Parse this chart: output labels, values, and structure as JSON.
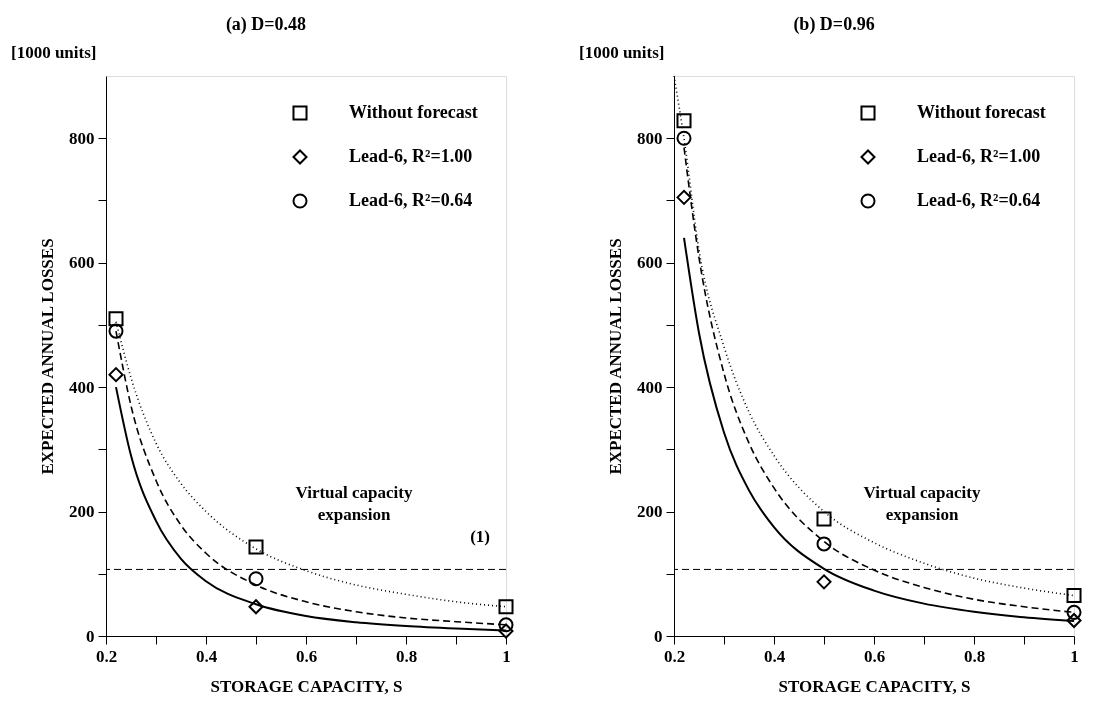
{
  "chart_data": [
    {
      "type": "scatter",
      "title": "(a) D=0.48",
      "xlabel": "STORAGE CAPACITY, S",
      "ylabel": "EXPECTED ANNUAL LOSSES",
      "annotations": [
        "[1000 units]",
        "Virtual capacity expansion",
        "(1)"
      ],
      "xlim": [
        0.2,
        1
      ],
      "ylim": [
        0,
        900
      ],
      "xticks": [
        0.2,
        {
          "value": 0.3,
          "label": null
        },
        0.4,
        {
          "value": 0.5,
          "label": null
        },
        0.6,
        {
          "value": 0.7,
          "label": null
        },
        0.8,
        {
          "value": 0.9,
          "label": null
        },
        1
      ],
      "yticks": [
        0,
        {
          "value": 100,
          "label": null
        },
        200,
        {
          "value": 300,
          "label": null
        },
        400,
        {
          "value": 500,
          "label": null
        },
        600,
        {
          "value": 700,
          "label": null
        },
        800
      ],
      "grid": false,
      "legend": "top right",
      "ref_lines": [
        {
          "axis": "y",
          "value": 107,
          "line_style": "dashed"
        }
      ],
      "series": [
        {
          "name": "Without forecast",
          "marker": "square",
          "color": "#000000",
          "x": [
            0.22,
            0.5,
            1
          ],
          "values": [
            510,
            143,
            47
          ]
        },
        {
          "name": "Lead-6, R²=1.00",
          "marker": "diamond",
          "color": "#000000",
          "x": [
            0.22,
            0.5,
            1
          ],
          "values": [
            420,
            47,
            8
          ]
        },
        {
          "name": "Lead-6, R²=0.64",
          "marker": "circle",
          "color": "#000000",
          "x": [
            0.22,
            0.5,
            1
          ],
          "values": [
            490,
            92,
            18
          ]
        },
        {
          "type": "line",
          "line_style": "dotted",
          "marker": "none",
          "color": "#000000",
          "x": [
            0.22,
            0.25,
            0.3,
            0.35,
            0.4,
            0.5,
            0.6,
            0.7,
            0.8,
            0.9,
            1
          ],
          "values": [
            505,
            415,
            310,
            245,
            200,
            140,
            105,
            82,
            67,
            55,
            47
          ]
        },
        {
          "type": "line",
          "line_style": "dashed",
          "marker": "none",
          "color": "#000000",
          "x": [
            0.22,
            0.25,
            0.3,
            0.35,
            0.4,
            0.5,
            0.6,
            0.7,
            0.8,
            0.9,
            1
          ],
          "values": [
            490,
            370,
            250,
            178,
            133,
            82,
            55,
            39,
            29,
            23,
            18
          ]
        },
        {
          "type": "line",
          "line_style": "solid",
          "marker": "none",
          "color": "#000000",
          "x": [
            0.22,
            0.25,
            0.3,
            0.35,
            0.4,
            0.5,
            0.6,
            0.7,
            0.8,
            0.9,
            1
          ],
          "values": [
            400,
            290,
            185,
            124,
            88,
            51,
            32,
            22,
            16,
            12,
            9
          ]
        }
      ]
    },
    {
      "type": "scatter",
      "title": "(b) D=0.96",
      "xlabel": "STORAGE CAPACITY, S",
      "ylabel": "EXPECTED ANNUAL LOSSES",
      "annotations": [
        "[1000 units]",
        "Virtual capacity expansion"
      ],
      "xlim": [
        0.2,
        1
      ],
      "ylim": [
        0,
        900
      ],
      "xticks": [
        0.2,
        {
          "value": 0.3,
          "label": null
        },
        0.4,
        {
          "value": 0.5,
          "label": null
        },
        0.6,
        {
          "value": 0.7,
          "label": null
        },
        0.8,
        {
          "value": 0.9,
          "label": null
        },
        1
      ],
      "yticks": [
        0,
        {
          "value": 100,
          "label": null
        },
        200,
        {
          "value": 300,
          "label": null
        },
        400,
        {
          "value": 500,
          "label": null
        },
        600,
        {
          "value": 700,
          "label": null
        },
        800
      ],
      "grid": false,
      "legend": "top right",
      "ref_lines": [
        {
          "axis": "y",
          "value": 107,
          "line_style": "dashed"
        }
      ],
      "series": [
        {
          "name": "Without forecast",
          "marker": "square",
          "color": "#000000",
          "x": [
            0.22,
            0.5,
            1
          ],
          "values": [
            828,
            188,
            65
          ]
        },
        {
          "name": "Lead-6, R²=1.00",
          "marker": "diamond",
          "color": "#000000",
          "x": [
            0.22,
            0.5,
            1
          ],
          "values": [
            705,
            87,
            25
          ]
        },
        {
          "name": "Lead-6, R²=0.64",
          "marker": "circle",
          "color": "#000000",
          "x": [
            0.22,
            0.5,
            1
          ],
          "values": [
            800,
            148,
            38
          ]
        },
        {
          "type": "line",
          "line_style": "dotted",
          "marker": "none",
          "color": "#000000",
          "x": [
            0.2,
            0.22,
            0.25,
            0.3,
            0.35,
            0.4,
            0.5,
            0.6,
            0.7,
            0.8,
            0.9,
            1
          ],
          "values": [
            900,
            800,
            620,
            465,
            360,
            290,
            200,
            150,
            117,
            93,
            77,
            65
          ]
        },
        {
          "type": "line",
          "line_style": "dashed",
          "marker": "none",
          "color": "#000000",
          "x": [
            0.22,
            0.25,
            0.3,
            0.35,
            0.4,
            0.5,
            0.6,
            0.7,
            0.8,
            0.9,
            1
          ],
          "values": [
            785,
            608,
            422,
            310,
            238,
            152,
            106,
            78,
            59,
            47,
            38
          ]
        },
        {
          "type": "line",
          "line_style": "solid",
          "marker": "none",
          "color": "#000000",
          "x": [
            0.22,
            0.25,
            0.3,
            0.35,
            0.4,
            0.5,
            0.6,
            0.7,
            0.8,
            0.9,
            1
          ],
          "values": [
            640,
            487,
            327,
            234,
            175,
            108,
            73,
            52,
            39,
            30,
            24
          ]
        }
      ]
    }
  ]
}
